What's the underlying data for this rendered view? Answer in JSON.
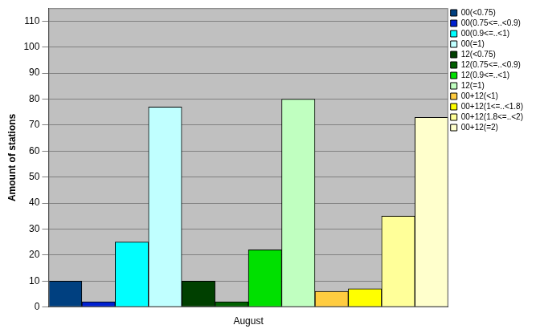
{
  "chart_data": {
    "type": "bar",
    "y_label": "Amount of stations",
    "categories": [
      "August"
    ],
    "series": [
      {
        "name": "00(<0.75)",
        "color": "#004080",
        "values": [
          10
        ]
      },
      {
        "name": "00(0.75<=..<0.9)",
        "color": "#0020d0",
        "values": [
          2
        ]
      },
      {
        "name": "00(0.9<=..<1)",
        "color": "#00ffff",
        "values": [
          25
        ]
      },
      {
        "name": "00(=1)",
        "color": "#c0ffff",
        "values": [
          77
        ]
      },
      {
        "name": "12(<0.75)",
        "color": "#004000",
        "values": [
          10
        ]
      },
      {
        "name": "12(0.75<=..<0.9)",
        "color": "#006000",
        "values": [
          2
        ]
      },
      {
        "name": "12(0.9<=..<1)",
        "color": "#00e000",
        "values": [
          22
        ]
      },
      {
        "name": "12(=1)",
        "color": "#c0ffc0",
        "values": [
          80
        ]
      },
      {
        "name": "00+12(<1)",
        "color": "#ffcc40",
        "values": [
          6
        ]
      },
      {
        "name": "00+12(1<=..<1.8)",
        "color": "#ffff00",
        "values": [
          7
        ]
      },
      {
        "name": "00+12(1.8<=..<2)",
        "color": "#ffff99",
        "values": [
          35
        ]
      },
      {
        "name": "00+12(=2)",
        "color": "#ffffcc",
        "values": [
          73
        ]
      }
    ],
    "ylim": [
      0,
      115
    ],
    "yticks": [
      0,
      10,
      20,
      30,
      40,
      50,
      60,
      70,
      80,
      90,
      100,
      110
    ],
    "grid": true,
    "legend": "top right"
  }
}
